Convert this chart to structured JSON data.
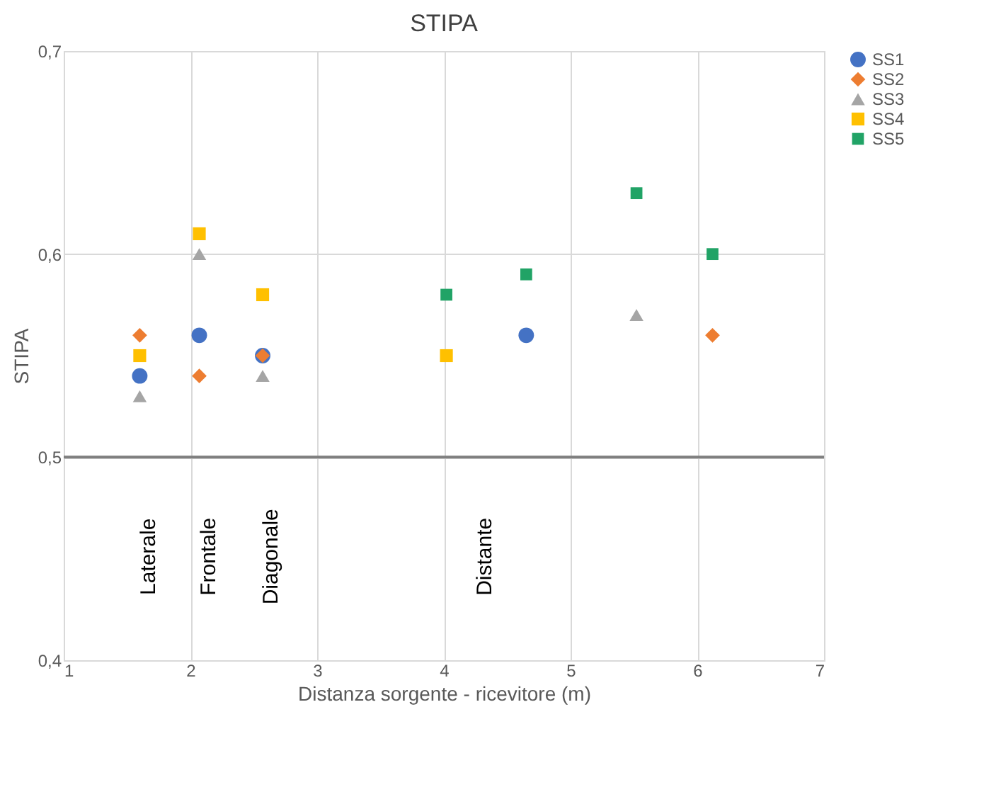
{
  "chart_data": {
    "type": "scatter",
    "title": "STIPA",
    "xlabel": "Distanza sorgente - ricevitore (m)",
    "ylabel": "STIPA",
    "xlim": [
      1,
      7
    ],
    "xticks": [
      1,
      2,
      3,
      4,
      5,
      6,
      7
    ],
    "ylim": [
      0.4,
      0.7
    ],
    "yticks": [
      {
        "value": 0.4,
        "label": "0,4"
      },
      {
        "value": 0.5,
        "label": "0,5"
      },
      {
        "value": 0.6,
        "label": "0,6"
      },
      {
        "value": 0.7,
        "label": "0,7"
      }
    ],
    "grid": true,
    "legend": "right",
    "series": [
      {
        "name": "SS1",
        "color": "#4472c4",
        "marker": "circle",
        "x": [
          1.6,
          2.07,
          2.57,
          4.65
        ],
        "values": [
          0.54,
          0.56,
          0.55,
          0.56
        ]
      },
      {
        "name": "SS2",
        "color": "#ed7d31",
        "marker": "diamond",
        "x": [
          1.6,
          2.07,
          2.57,
          6.12
        ],
        "values": [
          0.56,
          0.54,
          0.55,
          0.56
        ]
      },
      {
        "name": "SS3",
        "color": "#a5a5a5",
        "marker": "triangle",
        "x": [
          1.6,
          2.07,
          2.57,
          5.52
        ],
        "values": [
          0.53,
          0.6,
          0.54,
          0.57
        ]
      },
      {
        "name": "SS4",
        "color": "#ffc000",
        "marker": "square",
        "x": [
          1.6,
          2.07,
          2.57,
          4.02
        ],
        "values": [
          0.55,
          0.61,
          0.58,
          0.55
        ]
      },
      {
        "name": "SS5",
        "color": "#21a366",
        "marker": "square",
        "x": [
          4.02,
          4.65,
          5.52,
          6.12
        ],
        "values": [
          0.58,
          0.59,
          0.63,
          0.6
        ]
      }
    ],
    "ref_lines": [
      {
        "axis": "y",
        "value": 0.5,
        "color": "#7f7f7f"
      }
    ],
    "annotations": [
      "Laterale",
      "Frontale",
      "Diagonale",
      "Distante"
    ]
  }
}
